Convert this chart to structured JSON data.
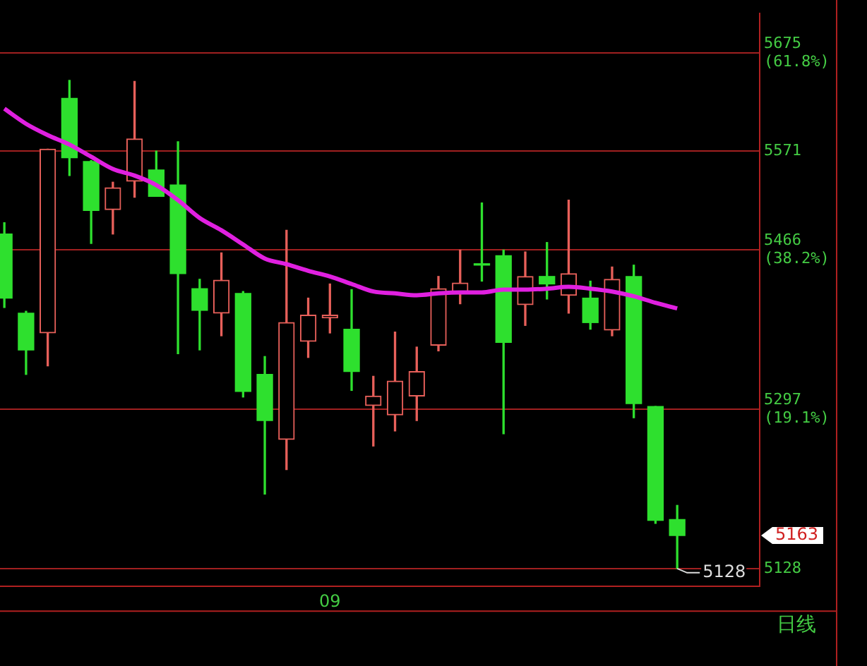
{
  "chart_data": {
    "type": "candlestick",
    "categories": [
      null,
      null,
      null,
      null,
      null,
      null,
      null,
      null,
      null,
      null,
      null,
      null,
      null,
      null,
      null,
      "09",
      null,
      null,
      null,
      null,
      null,
      null,
      null,
      null,
      null,
      null,
      null,
      null,
      null,
      null,
      null,
      null
    ],
    "ohlc": [
      [
        5483,
        5495,
        5405,
        5415
      ],
      [
        5399,
        5401,
        5334,
        5360
      ],
      [
        5378,
        5573,
        5343,
        5573
      ],
      [
        5627,
        5646,
        5545,
        5564
      ],
      [
        5560,
        5561,
        5473,
        5508
      ],
      [
        5509,
        5538,
        5483,
        5532
      ],
      [
        5539,
        5645,
        5522,
        5584
      ],
      [
        5551,
        5571,
        5523,
        5523
      ],
      [
        5535,
        5581,
        5356,
        5441
      ],
      [
        5425,
        5435,
        5360,
        5402
      ],
      [
        5399,
        5463,
        5375,
        5434
      ],
      [
        5420,
        5422,
        5310,
        5316
      ],
      [
        5334,
        5353,
        5207,
        5285
      ],
      [
        5265,
        5487,
        5233,
        5389
      ],
      [
        5369,
        5415,
        5352,
        5397
      ],
      [
        5394,
        5430,
        5378,
        5397
      ],
      [
        5382,
        5424,
        5317,
        5337
      ],
      [
        5301,
        5332,
        5258,
        5311
      ],
      [
        5291,
        5379,
        5274,
        5327
      ],
      [
        5311,
        5363,
        5285,
        5337
      ],
      [
        5365,
        5438,
        5359,
        5425
      ],
      [
        5421,
        5466,
        5409,
        5431
      ],
      [
        5451,
        5516,
        5433,
        5450
      ],
      [
        5460,
        5466,
        5271,
        5368
      ],
      [
        5408,
        5464,
        5386,
        5438
      ],
      [
        5438,
        5474,
        5414,
        5430
      ],
      [
        5418,
        5519,
        5399,
        5441
      ],
      [
        5415,
        5433,
        5382,
        5389
      ],
      [
        5381,
        5448,
        5375,
        5435
      ],
      [
        5438,
        5450,
        5288,
        5303
      ],
      [
        5300,
        5300,
        5176,
        5179
      ],
      [
        5180,
        5195,
        5128,
        5163
      ]
    ],
    "series": [
      {
        "type": "line",
        "color": "#e020e0",
        "values": [
          5616,
          5600,
          5588,
          5578,
          5565,
          5552,
          5545,
          5535,
          5519,
          5500,
          5487,
          5472,
          5457,
          5451,
          5444,
          5438,
          5430,
          5422,
          5420,
          5418,
          5420,
          5421,
          5421,
          5424,
          5424,
          5425,
          5427,
          5425,
          5422,
          5417,
          5410,
          5404
        ]
      }
    ],
    "colors": [
      "#2ee02e",
      "#2ee02e",
      "#e8605a",
      "#2ee02e",
      "#2ee02e",
      "#e8605a",
      "#e8605a",
      "#2ee02e",
      "#2ee02e",
      "#2ee02e",
      "#e8605a",
      "#2ee02e",
      "#2ee02e",
      "#e8605a",
      "#e8605a",
      "#e8605a",
      "#2ee02e",
      "#e8605a",
      "#e8605a",
      "#e8605a",
      "#e8605a",
      "#e8605a",
      "#2ee02e",
      "#2ee02e",
      "#e8605a",
      "#2ee02e",
      "#e8605a",
      "#2ee02e",
      "#e8605a",
      "#2ee02e",
      "#2ee02e",
      "#2ee02e"
    ],
    "ylim": [
      5109,
      5717
    ],
    "yticks": [
      {
        "value": 5675,
        "label": "5675 (61.8%)"
      },
      5571,
      {
        "value": 5466,
        "label": "5466 (38.2%)"
      },
      {
        "value": 5297,
        "label": "5297 (19.1%)"
      },
      5128
    ],
    "grid": "y",
    "annotations": [
      "5163",
      "5128",
      "日线"
    ]
  }
}
